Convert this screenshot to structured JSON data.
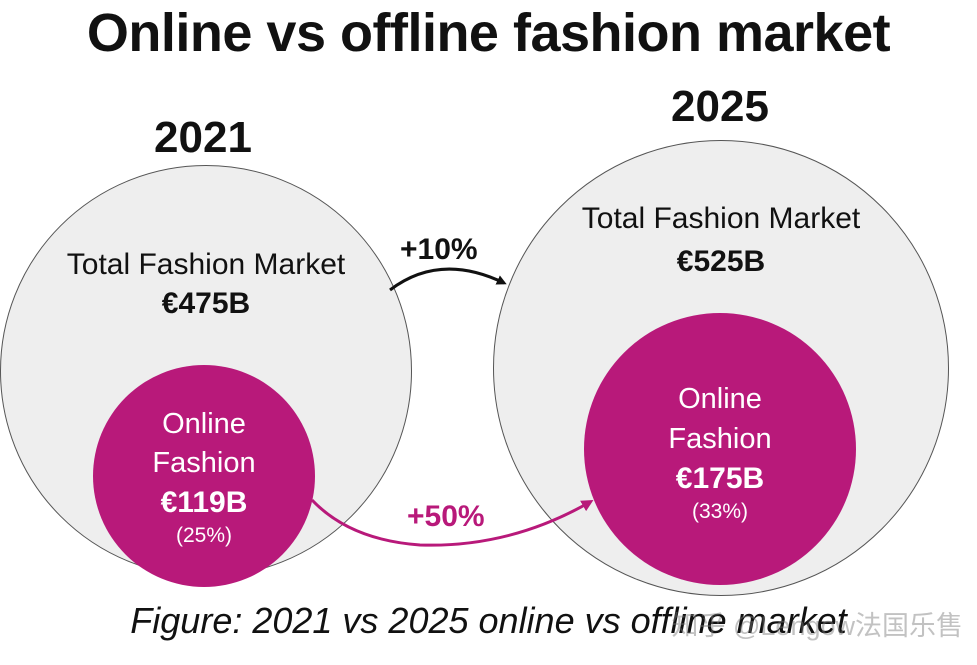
{
  "title": "Online vs offline fashion market",
  "left": {
    "year": "2021",
    "total_label": "Total Fashion Market",
    "total_value": "€475B",
    "online_line1": "Online",
    "online_line2": "Fashion",
    "online_value": "€119B",
    "online_share": "(25%)"
  },
  "right": {
    "year": "2025",
    "total_label": "Total Fashion Market",
    "total_value": "€525B",
    "online_line1": "Online",
    "online_line2": "Fashion",
    "online_value": "€175B",
    "online_share": "(33%)"
  },
  "growth": {
    "total": "+10%",
    "online": "+50%"
  },
  "caption": "Figure: 2021 vs 2025 online vs offline market",
  "watermark": "知乎 @Lengow法国乐售",
  "colors": {
    "online_circle": "#b8197a",
    "total_circle": "#eeeeee",
    "online_arrow": "#b8197a",
    "total_arrow": "#111111"
  }
}
